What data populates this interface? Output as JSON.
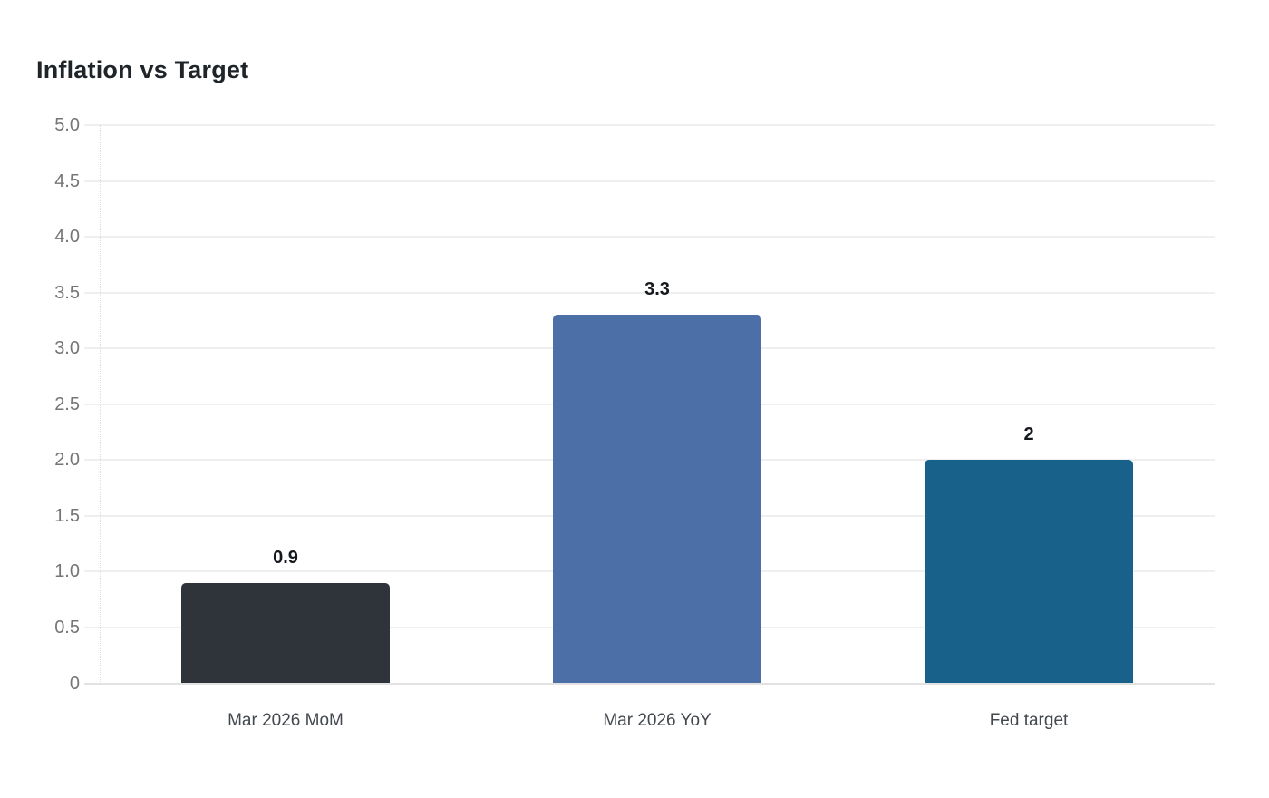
{
  "page": {
    "background_color": "#ffffff"
  },
  "chart_data": {
    "type": "bar",
    "title": "Inflation vs Target",
    "categories": [
      "Mar 2026 MoM",
      "Mar 2026 YoY",
      "Fed target"
    ],
    "values": [
      0.9,
      3.3,
      2
    ],
    "value_labels": [
      "0.9",
      "3.3",
      "2"
    ],
    "bar_colors": [
      "#2e3439",
      "#4b6fa6",
      "#17618a"
    ],
    "xlabel": "",
    "ylabel": "",
    "ylim": [
      0,
      5
    ],
    "ytick_step": 0.5,
    "ytick_labels": [
      "5.0",
      "4.5",
      "4.0",
      "3.5",
      "3.0",
      "2.5",
      "2.0",
      "1.5",
      "1.0",
      "0.5",
      "0"
    ],
    "ytick_values": [
      5.0,
      4.5,
      4.0,
      3.5,
      3.0,
      2.5,
      2.0,
      1.5,
      1.0,
      0.5,
      0
    ],
    "grid": true,
    "legend_position": "none",
    "style": {
      "title_color": "#1f2429",
      "gridline_color": "#efefef",
      "zero_line_color": "#e2e2e2",
      "axis_spine_color": "#dcdcdc",
      "ytick_label_color": "#757575",
      "xtick_label_color": "#42484e",
      "value_label_color": "#15191d"
    }
  }
}
